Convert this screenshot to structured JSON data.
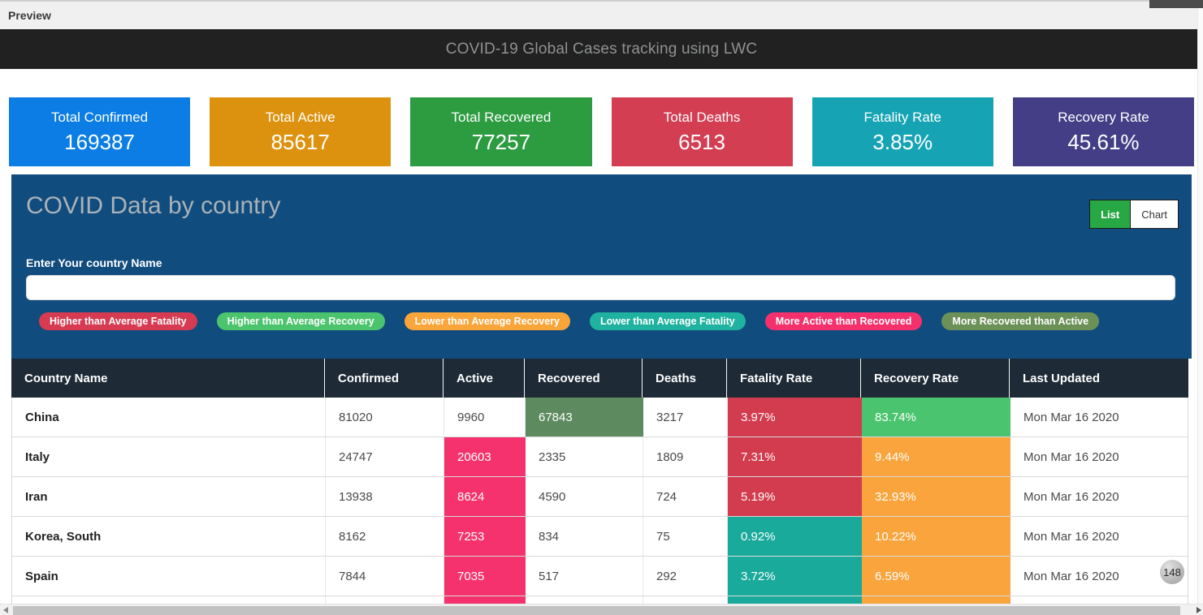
{
  "window": {
    "preview_label": "Preview"
  },
  "header": {
    "title": "COVID-19 Global Cases tracking using LWC"
  },
  "colors": {
    "pink": "#f5326e",
    "red": "#d23c4e",
    "orange": "#f9a43c",
    "teal": "#1aaa9b",
    "green": "#4ac46f",
    "olive": "#5d8a5e",
    "panel_blue": "#114c7e",
    "table_header": "#1e2b37",
    "list_active_green": "#28a745"
  },
  "stat_cards": [
    {
      "label": "Total Confirmed",
      "value": "169387",
      "color": "#0b7de4"
    },
    {
      "label": "Total Active",
      "value": "85617",
      "color": "#dd920f"
    },
    {
      "label": "Total Recovered",
      "value": "77257",
      "color": "#2d9c41"
    },
    {
      "label": "Total Deaths",
      "value": "6513",
      "color": "#d43e52"
    },
    {
      "label": "Fatality Rate",
      "value": "3.85%",
      "color": "#16a4b4"
    },
    {
      "label": "Recovery Rate",
      "value": "45.61%",
      "color": "#443e86"
    }
  ],
  "panel": {
    "title": "COVID Data by country",
    "view_toggle": {
      "list_label": "List",
      "chart_label": "Chart",
      "active": "List"
    },
    "search": {
      "label": "Enter Your country Name",
      "value": "",
      "placeholder": ""
    },
    "legend": [
      {
        "label": "Higher than Average Fatality",
        "color": "#d63b52"
      },
      {
        "label": "Higher than Average Recovery",
        "color": "#4cc36d"
      },
      {
        "label": "Lower than Average Recovery",
        "color": "#f9a53a"
      },
      {
        "label": "Lower than Average Fatality",
        "color": "#20b2a0"
      },
      {
        "label": "More Active than Recovered",
        "color": "#f5316d"
      },
      {
        "label": "More Recovered than Active",
        "color": "#6c9158"
      }
    ]
  },
  "table": {
    "columns": [
      "Country Name",
      "Confirmed",
      "Active",
      "Recovered",
      "Deaths",
      "Fatality Rate",
      "Recovery Rate",
      "Last Updated"
    ],
    "rows": [
      {
        "country": "China",
        "confirmed": "81020",
        "active": "9960",
        "recovered": "67843",
        "deaths": "3217",
        "fatality": "3.97%",
        "recovery": "83.74%",
        "updated": "Mon Mar 16 2020"
      },
      {
        "country": "Italy",
        "confirmed": "24747",
        "active": "20603",
        "recovered": "2335",
        "deaths": "1809",
        "fatality": "7.31%",
        "recovery": "9.44%",
        "updated": "Mon Mar 16 2020"
      },
      {
        "country": "Iran",
        "confirmed": "13938",
        "active": "8624",
        "recovered": "4590",
        "deaths": "724",
        "fatality": "5.19%",
        "recovery": "32.93%",
        "updated": "Mon Mar 16 2020"
      },
      {
        "country": "Korea, South",
        "confirmed": "8162",
        "active": "7253",
        "recovered": "834",
        "deaths": "75",
        "fatality": "0.92%",
        "recovery": "10.22%",
        "updated": "Mon Mar 16 2020"
      },
      {
        "country": "Spain",
        "confirmed": "7844",
        "active": "7035",
        "recovered": "517",
        "deaths": "292",
        "fatality": "3.72%",
        "recovery": "6.59%",
        "updated": "Mon Mar 16 2020"
      }
    ],
    "partial_row": {
      "country": "",
      "confirmed": "",
      "active": "",
      "recovered": "",
      "deaths": "",
      "fatality": "",
      "recovery": "",
      "updated": ""
    }
  },
  "floating_badge": {
    "count": "148"
  }
}
